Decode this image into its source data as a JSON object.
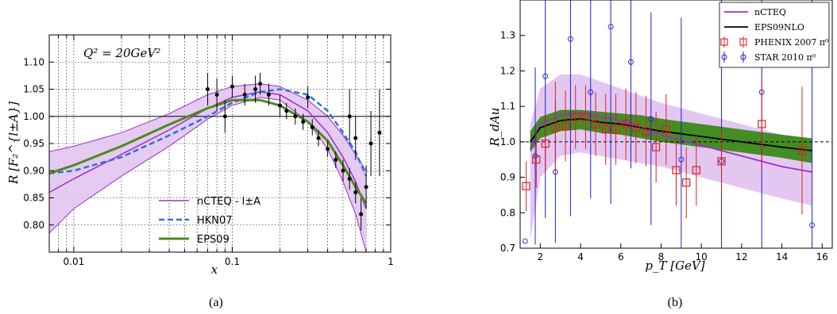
{
  "captions": {
    "a": "(a)",
    "b": "(b)"
  },
  "chart_data": [
    {
      "type": "line",
      "id": "a",
      "annotation": "Q² = 20GeV²",
      "xlabel": "x",
      "ylabel": "R [F₂^{l±A}]",
      "x_scale": "log",
      "xlim": [
        0.007,
        1.0
      ],
      "ylim": [
        0.75,
        1.15
      ],
      "x_ticks": [
        {
          "v": 0.01,
          "label": "0.01"
        },
        {
          "v": 0.1,
          "label": "0.1"
        },
        {
          "v": 1,
          "label": "1"
        }
      ],
      "y_ticks": [
        0.8,
        0.85,
        0.9,
        0.95,
        1.0,
        1.05,
        1.1
      ],
      "y_tick_labels": [
        "0.80",
        "0.85",
        "0.90",
        "0.95",
        "1.00",
        "1.05",
        "1.10"
      ],
      "reference_line": 1.0,
      "colors": {
        "nCTEQ": "#9b30d0",
        "band": "#e2c4f0",
        "HKN07": "#3070d8",
        "EPS09": "#4e8a1a",
        "data": "#000000"
      },
      "legend": [
        {
          "key": "nCTEQ",
          "label": "nCTEQ - l±A"
        },
        {
          "key": "HKN07",
          "label": "HKN07"
        },
        {
          "key": "EPS09",
          "label": "EPS09"
        }
      ],
      "nCTEQ_band": {
        "x": [
          0.007,
          0.01,
          0.02,
          0.04,
          0.07,
          0.1,
          0.15,
          0.2,
          0.3,
          0.4,
          0.5,
          0.6,
          0.7
        ],
        "upper": [
          0.935,
          0.945,
          0.97,
          1.005,
          1.04,
          1.055,
          1.06,
          1.055,
          1.03,
          1.0,
          0.965,
          0.93,
          0.9
        ],
        "lower": [
          0.785,
          0.83,
          0.89,
          0.945,
          0.995,
          1.02,
          1.035,
          1.03,
          0.99,
          0.94,
          0.88,
          0.82,
          0.74
        ]
      },
      "series": [
        {
          "key": "nCTEQ",
          "x": [
            0.007,
            0.01,
            0.02,
            0.04,
            0.07,
            0.1,
            0.15,
            0.2,
            0.3,
            0.4,
            0.5,
            0.6,
            0.7
          ],
          "values": [
            0.86,
            0.885,
            0.93,
            0.975,
            1.015,
            1.035,
            1.045,
            1.04,
            1.01,
            0.97,
            0.925,
            0.88,
            0.83
          ]
        },
        {
          "key": "HKN07",
          "x": [
            0.007,
            0.01,
            0.02,
            0.04,
            0.07,
            0.1,
            0.15,
            0.2,
            0.3,
            0.4,
            0.5,
            0.6,
            0.7
          ],
          "values": [
            0.895,
            0.9,
            0.925,
            0.965,
            1.0,
            1.025,
            1.045,
            1.05,
            1.04,
            1.01,
            0.97,
            0.935,
            0.89
          ]
        },
        {
          "key": "EPS09",
          "x": [
            0.007,
            0.01,
            0.02,
            0.04,
            0.07,
            0.1,
            0.15,
            0.2,
            0.3,
            0.4,
            0.5,
            0.6,
            0.7
          ],
          "values": [
            0.895,
            0.91,
            0.945,
            0.985,
            1.015,
            1.03,
            1.03,
            1.02,
            0.99,
            0.955,
            0.91,
            0.87,
            0.84
          ]
        }
      ],
      "data_points": [
        {
          "x": 0.07,
          "y": 1.05,
          "err": 0.03
        },
        {
          "x": 0.08,
          "y": 1.04,
          "err": 0.03
        },
        {
          "x": 0.09,
          "y": 1.0,
          "err": 0.03
        },
        {
          "x": 0.1,
          "y": 1.055,
          "err": 0.02
        },
        {
          "x": 0.12,
          "y": 1.04,
          "err": 0.02
        },
        {
          "x": 0.14,
          "y": 1.05,
          "err": 0.025
        },
        {
          "x": 0.15,
          "y": 1.06,
          "err": 0.02
        },
        {
          "x": 0.17,
          "y": 1.04,
          "err": 0.02
        },
        {
          "x": 0.2,
          "y": 1.02,
          "err": 0.02
        },
        {
          "x": 0.22,
          "y": 1.01,
          "err": 0.015
        },
        {
          "x": 0.25,
          "y": 1.0,
          "err": 0.015
        },
        {
          "x": 0.28,
          "y": 0.99,
          "err": 0.015
        },
        {
          "x": 0.32,
          "y": 0.98,
          "err": 0.015
        },
        {
          "x": 0.35,
          "y": 0.96,
          "err": 0.015
        },
        {
          "x": 0.4,
          "y": 0.94,
          "err": 0.015
        },
        {
          "x": 0.45,
          "y": 0.92,
          "err": 0.015
        },
        {
          "x": 0.5,
          "y": 0.9,
          "err": 0.02
        },
        {
          "x": 0.55,
          "y": 0.885,
          "err": 0.02
        },
        {
          "x": 0.6,
          "y": 0.86,
          "err": 0.02
        },
        {
          "x": 0.65,
          "y": 0.82,
          "err": 0.03
        },
        {
          "x": 0.7,
          "y": 0.87,
          "err": 0.04
        },
        {
          "x": 0.75,
          "y": 0.95,
          "err": 0.06
        },
        {
          "x": 0.85,
          "y": 0.97,
          "err": 0.08
        },
        {
          "x": 0.55,
          "y": 1.0,
          "err": 0.05
        },
        {
          "x": 0.6,
          "y": 0.96,
          "err": 0.04
        },
        {
          "x": 0.3,
          "y": 1.035,
          "err": 0.02
        }
      ]
    },
    {
      "type": "line",
      "id": "b",
      "xlabel": "p_T [GeV]",
      "ylabel": "R_dAu",
      "xlim": [
        1.0,
        16.5
      ],
      "ylim": [
        0.7,
        1.4
      ],
      "x_ticks": [
        2,
        4,
        6,
        8,
        10,
        12,
        14,
        16
      ],
      "y_ticks": [
        0.7,
        0.8,
        0.9,
        1.0,
        1.1,
        1.2,
        1.3
      ],
      "y_tick_labels": [
        "0.7",
        "0.8",
        "0.9",
        "1.0",
        "1.1",
        "1.2",
        "1.3"
      ],
      "reference_line": 1.0,
      "colors": {
        "nCTEQ": "#9b30d0",
        "nCTEQ_band": "#e2c4f0",
        "EPS09NLO": "#000000",
        "EPS09_band": "#3a8a18",
        "PHENIX": "#e02020",
        "STAR": "#2020d0"
      },
      "legend": [
        {
          "key": "nCTEQ",
          "label": "nCTEQ"
        },
        {
          "key": "EPS09NLO",
          "label": "EPS09NLO"
        },
        {
          "key": "PHENIX",
          "label": "PHENIX 2007 π⁰"
        },
        {
          "key": "STAR",
          "label": "STAR 2010 π⁰"
        }
      ],
      "nCTEQ_band": {
        "x": [
          1.5,
          2,
          3,
          4,
          5,
          6,
          7,
          8,
          10,
          12,
          14,
          15.5
        ],
        "upper": [
          1.05,
          1.15,
          1.19,
          1.19,
          1.17,
          1.15,
          1.13,
          1.11,
          1.08,
          1.05,
          1.02,
          1.0
        ],
        "lower": [
          0.72,
          0.9,
          0.96,
          0.97,
          0.96,
          0.95,
          0.94,
          0.93,
          0.9,
          0.87,
          0.84,
          0.82
        ]
      },
      "EPS09_band": {
        "x": [
          1.5,
          2,
          3,
          4,
          5,
          6,
          7,
          8,
          10,
          12,
          14,
          15.5
        ],
        "upper": [
          1.03,
          1.07,
          1.09,
          1.09,
          1.085,
          1.08,
          1.075,
          1.065,
          1.05,
          1.035,
          1.02,
          1.01
        ],
        "lower": [
          0.97,
          1.01,
          1.03,
          1.035,
          1.025,
          1.02,
          1.01,
          1.0,
          0.985,
          0.97,
          0.955,
          0.94
        ]
      },
      "series": [
        {
          "key": "nCTEQ",
          "x": [
            1.5,
            2,
            3,
            4,
            5,
            6,
            7,
            8,
            10,
            12,
            14,
            15.5
          ],
          "values": [
            0.98,
            1.05,
            1.075,
            1.08,
            1.07,
            1.06,
            1.04,
            1.02,
            0.99,
            0.96,
            0.93,
            0.915
          ]
        },
        {
          "key": "EPS09NLO",
          "x": [
            1.5,
            2,
            3,
            4,
            5,
            6,
            7,
            8,
            10,
            12,
            14,
            15.5
          ],
          "values": [
            1.0,
            1.04,
            1.06,
            1.065,
            1.055,
            1.05,
            1.04,
            1.03,
            1.015,
            1.0,
            0.985,
            0.975
          ]
        }
      ],
      "PHENIX": [
        {
          "x": 1.3,
          "y": 0.875,
          "err": 0.07
        },
        {
          "x": 1.8,
          "y": 0.95,
          "err": 0.08
        },
        {
          "x": 2.25,
          "y": 0.995,
          "err": 0.08
        },
        {
          "x": 2.75,
          "y": 1.04,
          "err": 0.13
        },
        {
          "x": 3.25,
          "y": 1.045,
          "err": 0.1
        },
        {
          "x": 3.75,
          "y": 1.07,
          "err": 0.09
        },
        {
          "x": 4.25,
          "y": 1.07,
          "err": 0.09
        },
        {
          "x": 4.75,
          "y": 1.05,
          "err": 0.09
        },
        {
          "x": 5.25,
          "y": 1.035,
          "err": 0.1
        },
        {
          "x": 5.75,
          "y": 1.035,
          "err": 0.1
        },
        {
          "x": 6.25,
          "y": 1.05,
          "err": 0.1
        },
        {
          "x": 6.75,
          "y": 1.04,
          "err": 0.1
        },
        {
          "x": 7.25,
          "y": 1.03,
          "err": 0.1
        },
        {
          "x": 7.75,
          "y": 0.985,
          "err": 0.1
        },
        {
          "x": 8.25,
          "y": 1.035,
          "err": 0.1
        },
        {
          "x": 8.75,
          "y": 0.92,
          "err": 0.1
        },
        {
          "x": 9.25,
          "y": 0.885,
          "err": 0.1
        },
        {
          "x": 9.75,
          "y": 0.92,
          "err": 0.1
        },
        {
          "x": 11.0,
          "y": 0.945,
          "err": 0.09
        },
        {
          "x": 13.0,
          "y": 1.05,
          "err": 0.13
        },
        {
          "x": 15.0,
          "y": 0.975,
          "err": 0.18
        }
      ],
      "STAR": [
        {
          "x": 1.25,
          "y": 0.72,
          "err": 0.0
        },
        {
          "x": 1.75,
          "y": 0.96,
          "err": 0.25
        },
        {
          "x": 2.25,
          "y": 1.185,
          "err": 0.4
        },
        {
          "x": 2.75,
          "y": 0.915,
          "err": 0.2
        },
        {
          "x": 3.5,
          "y": 1.29,
          "err": 0.5
        },
        {
          "x": 4.5,
          "y": 1.14,
          "err": 0.3
        },
        {
          "x": 5.5,
          "y": 1.325,
          "err": 0.5
        },
        {
          "x": 6.5,
          "y": 1.225,
          "err": 0.3
        },
        {
          "x": 7.5,
          "y": 1.065,
          "err": 0.3
        },
        {
          "x": 9.0,
          "y": 0.95,
          "err": 0.4
        },
        {
          "x": 11.0,
          "y": 0.945,
          "err": 0.5
        },
        {
          "x": 13.0,
          "y": 1.14,
          "err": 0.6
        },
        {
          "x": 15.5,
          "y": 0.765,
          "err": 0.7
        }
      ]
    }
  ]
}
